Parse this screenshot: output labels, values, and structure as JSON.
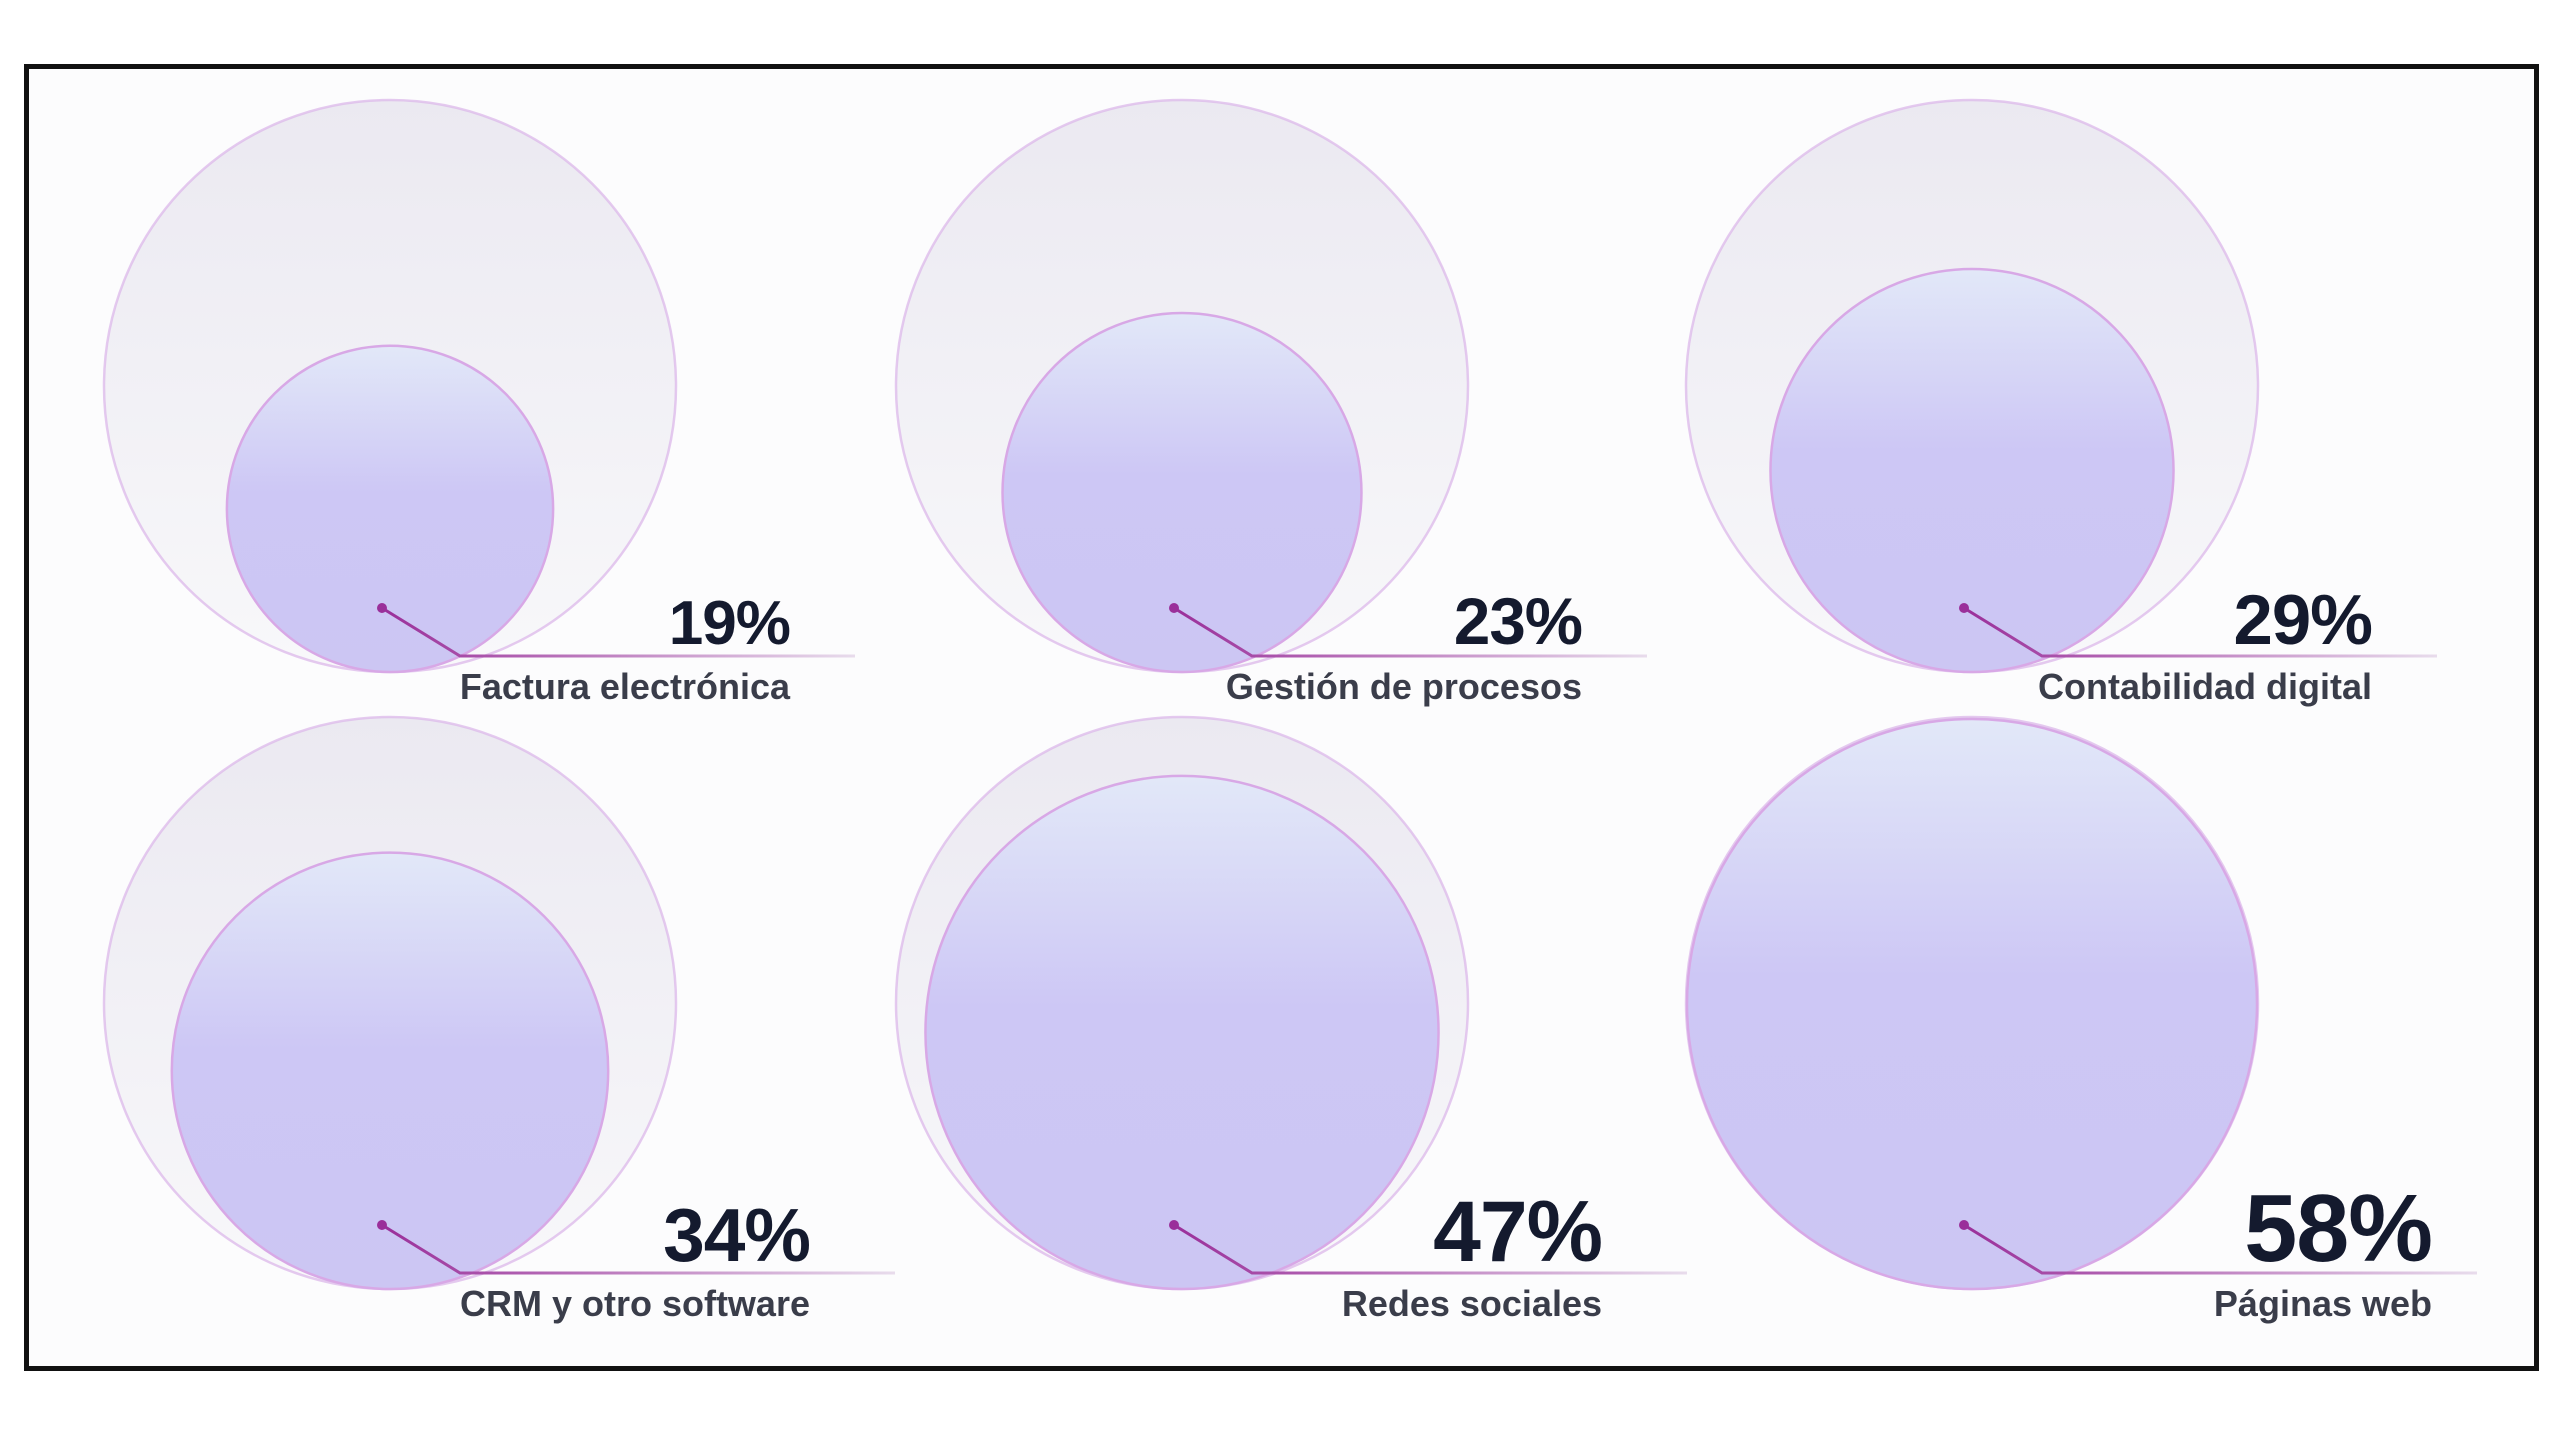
{
  "chart_data": {
    "type": "bubble",
    "items": [
      {
        "label": "Factura electrónica",
        "value": 19,
        "display": "19%"
      },
      {
        "label": "Gestión de procesos",
        "value": 23,
        "display": "23%"
      },
      {
        "label": "Contabilidad digital",
        "value": 29,
        "display": "29%"
      },
      {
        "label": "CRM y otro software",
        "value": 34,
        "display": "34%"
      },
      {
        "label": "Redes sociales",
        "value": 47,
        "display": "47%"
      },
      {
        "label": "Páginas web",
        "value": 58,
        "display": "58%"
      }
    ]
  },
  "colors": {
    "outer_fill_top": "#ebe9f1",
    "outer_fill_bottom": "#f8f8fa",
    "outer_stroke": "#dcb8ea",
    "inner_fill_top": "#dfe5f7",
    "inner_fill_mid": "#cdc7f5",
    "inner_stroke": "#d8a8e6",
    "leader": "#9a2f9a",
    "text_percent": "#141a2e",
    "text_label": "#3a3d4a"
  }
}
